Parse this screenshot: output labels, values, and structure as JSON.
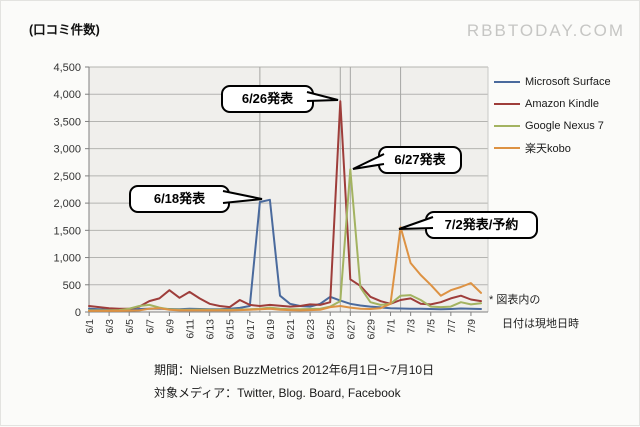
{
  "page": {
    "watermark": "RBBTODAY.COM"
  },
  "chart_data": {
    "type": "line",
    "title": "(口コミ件数)",
    "ylabel": "(口コミ件数)",
    "xlabel": "",
    "ylim": [
      0,
      4500
    ],
    "ytick_step": 500,
    "grid": "horizontal",
    "legend_position": "right",
    "x": [
      "6/1",
      "6/2",
      "6/3",
      "6/4",
      "6/5",
      "6/6",
      "6/7",
      "6/8",
      "6/9",
      "6/10",
      "6/11",
      "6/12",
      "6/13",
      "6/14",
      "6/15",
      "6/16",
      "6/17",
      "6/18",
      "6/19",
      "6/20",
      "6/21",
      "6/22",
      "6/23",
      "6/24",
      "6/25",
      "6/26",
      "6/27",
      "6/28",
      "6/29",
      "6/30",
      "7/1",
      "7/2",
      "7/3",
      "7/4",
      "7/5",
      "7/6",
      "7/7",
      "7/8",
      "7/9",
      "7/10"
    ],
    "xtick_shown_every": 2,
    "series": [
      {
        "name": "Microsoft Surface",
        "color": "#4a6a9d",
        "values": [
          60,
          50,
          40,
          40,
          45,
          55,
          60,
          60,
          55,
          50,
          60,
          55,
          50,
          50,
          60,
          75,
          110,
          2020,
          2060,
          300,
          150,
          110,
          100,
          150,
          280,
          210,
          150,
          120,
          100,
          85,
          70,
          65,
          60,
          60,
          55,
          50,
          55,
          65,
          60,
          55
        ]
      },
      {
        "name": "Amazon Kindle",
        "color": "#9e3d3a",
        "values": [
          110,
          90,
          70,
          60,
          60,
          100,
          200,
          250,
          400,
          260,
          370,
          250,
          150,
          110,
          90,
          220,
          130,
          110,
          130,
          115,
          100,
          110,
          140,
          130,
          180,
          3870,
          600,
          480,
          280,
          200,
          150,
          220,
          250,
          150,
          140,
          180,
          250,
          300,
          230,
          200
        ]
      },
      {
        "name": "Google Nexus 7",
        "color": "#a3b361",
        "values": [
          30,
          30,
          30,
          35,
          60,
          110,
          130,
          80,
          50,
          40,
          40,
          45,
          40,
          40,
          40,
          45,
          50,
          60,
          80,
          60,
          50,
          50,
          55,
          60,
          100,
          200,
          2620,
          450,
          180,
          130,
          150,
          300,
          310,
          220,
          100,
          90,
          100,
          180,
          140,
          160
        ]
      },
      {
        "name": "楽天kobo",
        "color": "#dd9243",
        "values": [
          20,
          20,
          20,
          20,
          25,
          30,
          60,
          70,
          40,
          30,
          30,
          30,
          30,
          30,
          30,
          35,
          40,
          50,
          60,
          40,
          35,
          30,
          35,
          40,
          90,
          110,
          80,
          60,
          55,
          70,
          150,
          1560,
          900,
          680,
          500,
          300,
          400,
          460,
          530,
          350
        ]
      }
    ],
    "event_lines": [
      "6/18",
      "6/26",
      "6/27",
      "7/2"
    ],
    "annotations": [
      {
        "label": "6/18発表",
        "date": "6/18",
        "series": "Microsoft Surface",
        "value": 2020
      },
      {
        "label": "6/26発表",
        "date": "6/26",
        "series": "Amazon Kindle",
        "value": 3870
      },
      {
        "label": "6/27発表",
        "date": "6/27",
        "series": "Google Nexus 7",
        "value": 2620
      },
      {
        "label": "7/2発表/予約",
        "date": "7/2",
        "series": "楽天kobo",
        "value": 1560
      }
    ]
  },
  "footnote": {
    "line1": "* 図表内の",
    "line2": "日付は現地日時"
  },
  "caption": {
    "line1": "期間：Nielsen BuzzMetrics 2012年6月1日～7月10日",
    "line2": "対象メディア：Twitter, Blog. Board, Facebook"
  }
}
